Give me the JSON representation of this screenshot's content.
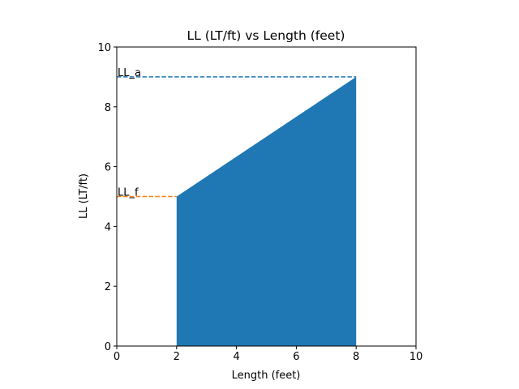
{
  "chart_data": {
    "type": "area",
    "title": "LL (LT/ft) vs Length (feet)",
    "xlabel": "Length (feet)",
    "ylabel": "LL (LT/ft)",
    "xlim": [
      0,
      10
    ],
    "ylim": [
      0,
      10
    ],
    "xticks": [
      0,
      2,
      4,
      6,
      8,
      10
    ],
    "yticks": [
      0,
      2,
      4,
      6,
      8,
      10
    ],
    "grid": false,
    "area": {
      "x": [
        2,
        2,
        8,
        8
      ],
      "y": [
        0,
        5,
        9,
        0
      ],
      "color": "#1f77b4"
    },
    "reference_lines": [
      {
        "label": "LL_a",
        "y": 9,
        "x": [
          0,
          8
        ],
        "color": "#1f77b4",
        "style": "dashed"
      },
      {
        "label": "LL_f",
        "y": 5,
        "x": [
          0,
          2
        ],
        "color": "#ff7f0e",
        "style": "dashed"
      }
    ]
  }
}
